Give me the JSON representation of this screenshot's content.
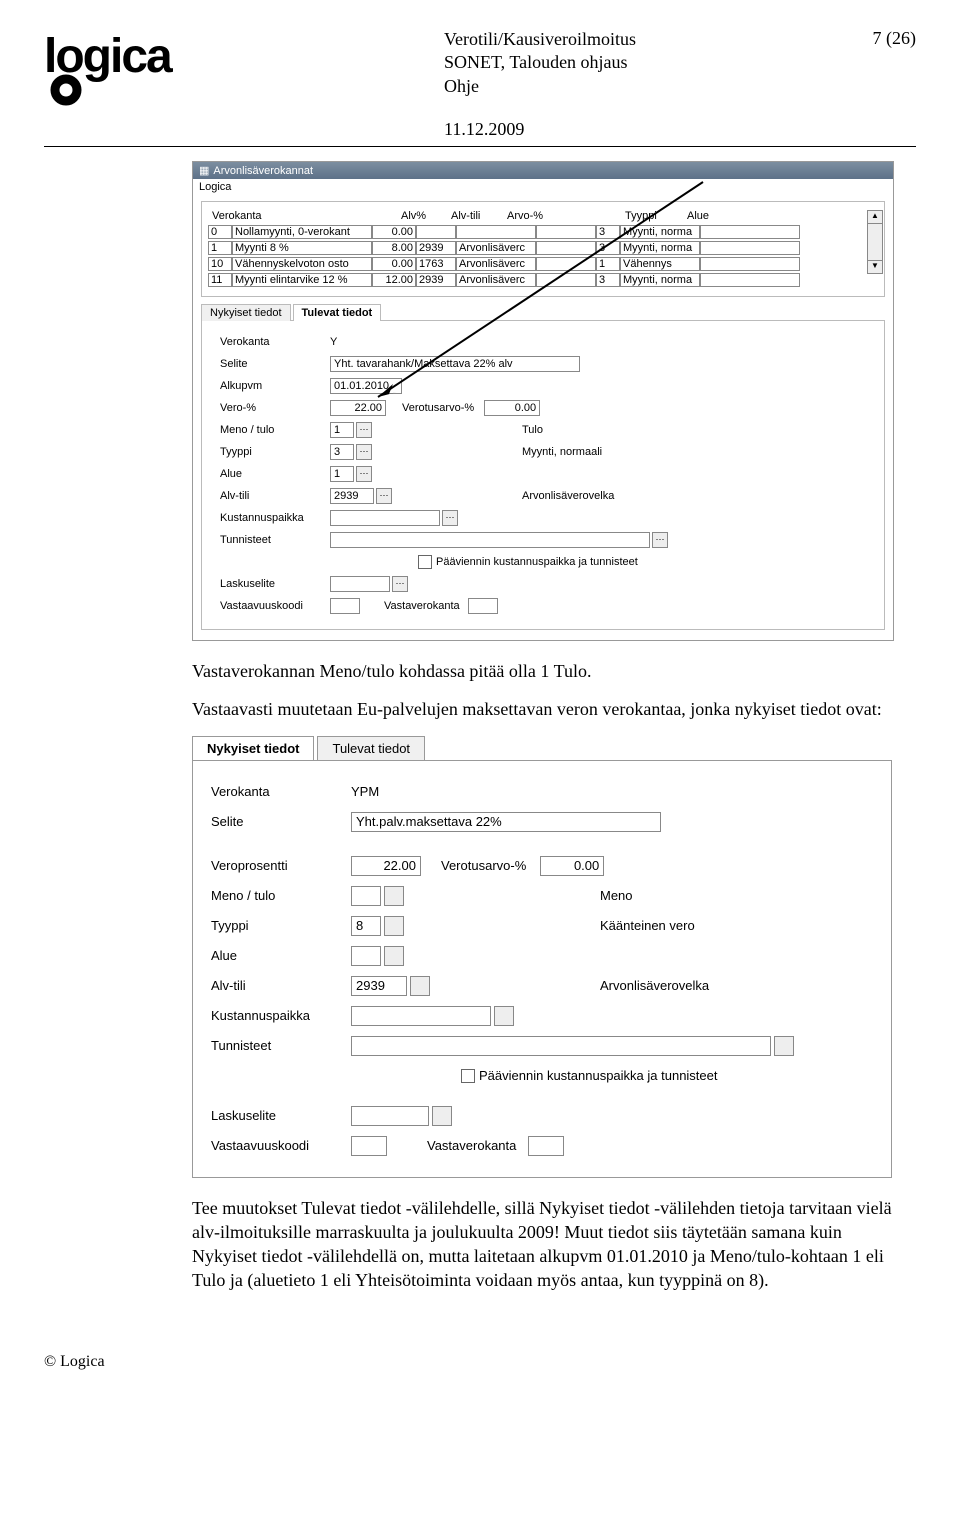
{
  "header": {
    "doc_title": "Verotili/Kausiveroilmoitus",
    "line2": "SONET, Talouden ohjaus",
    "line3": "Ohje",
    "page": "7 (26)",
    "date": "11.12.2009"
  },
  "logo_text": "logica",
  "shot1": {
    "titlebar": "Arvonlisäverokannat",
    "owner": "Logica",
    "cols": {
      "c1": "Verokanta",
      "c2": "Alv%",
      "c3": "Alv-tili",
      "c4": "Arvo-%",
      "c5": "Tyyppi",
      "c6": "Alue"
    },
    "rows": [
      {
        "code": "0",
        "name": "Nollamyynti, 0-verokant",
        "alv": "0.00",
        "tili": "",
        "desc": "",
        "tyyppi": "3",
        "tname": "Myynti, norma"
      },
      {
        "code": "1",
        "name": "Myynti 8 %",
        "alv": "8.00",
        "tili": "2939",
        "desc": "Arvonlisäverc",
        "tyyppi": "3",
        "tname": "Myynti, norma"
      },
      {
        "code": "10",
        "name": "Vähennyskelvoton osto",
        "alv": "0.00",
        "tili": "1763",
        "desc": "Arvonlisäverc",
        "tyyppi": "1",
        "tname": "Vähennys"
      },
      {
        "code": "11",
        "name": "Myynti elintarvike 12 %",
        "alv": "12.00",
        "tili": "2939",
        "desc": "Arvonlisäverc",
        "tyyppi": "3",
        "tname": "Myynti, norma"
      }
    ],
    "tabs": {
      "t1": "Nykyiset tiedot",
      "t2": "Tulevat tiedot"
    },
    "form": {
      "l_verokanta": "Verokanta",
      "v_verokanta": "Y",
      "l_selite": "Selite",
      "v_selite": "Yht. tavarahank/Maksettava 22% alv",
      "l_alkupvm": "Alkupvm",
      "v_alkupvm": "01.01.2010",
      "l_vero": "Vero-%",
      "v_vero": "22.00",
      "l_verotus": "Verotusarvo-%",
      "v_verotus": "0.00",
      "l_meno": "Meno / tulo",
      "v_meno": "1",
      "far_meno": "Tulo",
      "l_tyyppi": "Tyyppi",
      "v_tyyppi": "3",
      "far_tyyppi": "Myynti, normaali",
      "l_alue": "Alue",
      "v_alue": "1",
      "l_alvtili": "Alv-tili",
      "v_alvtili": "2939",
      "far_alvtili": "Arvonlisäverovelka",
      "l_kustannus": "Kustannuspaikka",
      "l_tunnisteet": "Tunnisteet",
      "chk_label": "Pääviennin kustannuspaikka ja tunnisteet",
      "l_laskuselite": "Laskuselite",
      "l_vastaavuus": "Vastaavuuskoodi",
      "l_vastavero": "Vastaverokanta"
    }
  },
  "para1": "Vastaverokannan Meno/tulo kohdassa pitää olla 1 Tulo.",
  "para2": "Vastaavasti muutetaan Eu-palvelujen maksettavan veron verokantaa, jonka nykyiset tiedot ovat:",
  "shot2": {
    "tabs": {
      "t1": "Nykyiset tiedot",
      "t2": "Tulevat tiedot"
    },
    "form": {
      "l_verokanta": "Verokanta",
      "v_verokanta": "YPM",
      "l_selite": "Selite",
      "v_selite": "Yht.palv.maksettava 22%",
      "l_vero": "Veroprosentti",
      "v_vero": "22.00",
      "l_verotus": "Verotusarvo-%",
      "v_verotus": "0.00",
      "l_meno": "Meno / tulo",
      "far_meno": "Meno",
      "l_tyyppi": "Tyyppi",
      "v_tyyppi": "8",
      "far_tyyppi": "Käänteinen vero",
      "l_alue": "Alue",
      "l_alvtili": "Alv-tili",
      "v_alvtili": "2939",
      "far_alvtili": "Arvonlisäverovelka",
      "l_kustannus": "Kustannuspaikka",
      "l_tunnisteet": "Tunnisteet",
      "chk_label": "Pääviennin kustannuspaikka ja tunnisteet",
      "l_laskuselite": "Laskuselite",
      "l_vastaavuus": "Vastaavuuskoodi",
      "l_vastavero": "Vastaverokanta"
    }
  },
  "para3": "Tee muutokset Tulevat tiedot -välilehdelle, sillä Nykyiset tiedot -välilehden tietoja tarvitaan vielä alv-ilmoituksille marraskuulta ja joulukuulta 2009! Muut tiedot siis täytetään samana kuin Nykyiset tiedot -välilehdellä on, mutta laitetaan alkupvm 01.01.2010 ja Meno/tulo-kohtaan 1 eli Tulo ja (aluetieto 1 eli Yhteisötoiminta voidaan myös antaa, kun tyyppinä on 8).",
  "footer": "© Logica"
}
